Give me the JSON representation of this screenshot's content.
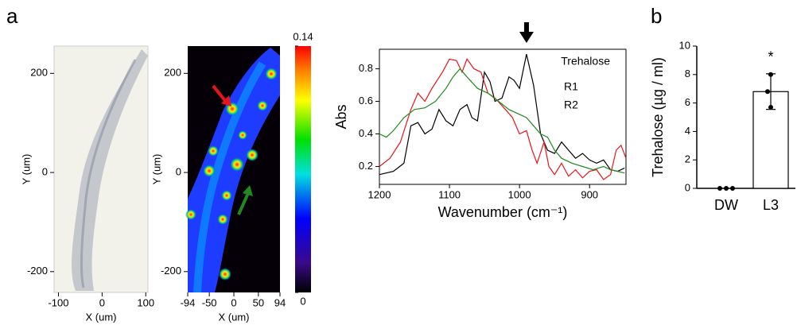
{
  "panel_labels": [
    "a",
    "b"
  ],
  "chart_data": [
    {
      "type": "image",
      "xlabel": "X (um)",
      "ylabel": "Y (um)",
      "xlim": [
        -110,
        105
      ],
      "ylim": [
        -242,
        255
      ],
      "xticks": [
        -100,
        0,
        100
      ],
      "yticks": [
        -200,
        0,
        200
      ]
    },
    {
      "type": "heatmap",
      "xlabel": "X (um)",
      "ylabel": "Y (um)",
      "xlim": [
        -94,
        94
      ],
      "ylim": [
        -242,
        255
      ],
      "xticks": [
        -94,
        -50,
        0,
        50,
        94
      ],
      "yticks": [
        -200,
        0,
        200
      ],
      "clim": [
        0,
        0.14
      ],
      "colorbar_ticks": [
        0,
        0.14
      ],
      "annotations": [
        {
          "text": "R1",
          "color": "#e8141b"
        },
        {
          "text": "R2",
          "color": "#1f8a1f"
        }
      ]
    },
    {
      "type": "line",
      "xlabel": "Wavenumber (cm⁻¹)",
      "ylabel": "Abs",
      "xlim": [
        1200,
        848
      ],
      "ylim": [
        0.09,
        0.92
      ],
      "xticks": [
        1200,
        1100,
        1000,
        900
      ],
      "yticks": [
        0.2,
        0.4,
        0.6,
        0.8
      ],
      "legend": "upper right",
      "arrow_x": 990,
      "series": [
        {
          "name": "Trehalose",
          "color": "#000000",
          "x": [
            1200,
            1180,
            1165,
            1155,
            1145,
            1135,
            1125,
            1115,
            1105,
            1095,
            1085,
            1075,
            1068,
            1060,
            1050,
            1042,
            1035,
            1025,
            1015,
            1008,
            1000,
            990,
            980,
            970,
            960,
            950,
            940,
            930,
            920,
            910,
            900,
            890,
            880,
            870,
            860,
            850
          ],
          "y": [
            0.15,
            0.17,
            0.22,
            0.45,
            0.47,
            0.4,
            0.43,
            0.55,
            0.48,
            0.45,
            0.55,
            0.58,
            0.5,
            0.48,
            0.78,
            0.72,
            0.6,
            0.62,
            0.75,
            0.73,
            0.68,
            0.89,
            0.7,
            0.4,
            0.3,
            0.28,
            0.35,
            0.3,
            0.25,
            0.28,
            0.24,
            0.22,
            0.24,
            0.18,
            0.17,
            0.19
          ]
        },
        {
          "name": "R1",
          "color": "#e8141b",
          "x": [
            1200,
            1185,
            1170,
            1155,
            1145,
            1135,
            1125,
            1110,
            1100,
            1090,
            1082,
            1075,
            1065,
            1055,
            1045,
            1035,
            1020,
            1010,
            1000,
            990,
            982,
            975,
            965,
            958,
            950,
            940,
            930,
            920,
            910,
            900,
            890,
            880,
            870,
            862,
            855,
            848
          ],
          "y": [
            0.2,
            0.25,
            0.35,
            0.55,
            0.65,
            0.6,
            0.68,
            0.78,
            0.86,
            0.85,
            0.78,
            0.86,
            0.8,
            0.78,
            0.65,
            0.62,
            0.55,
            0.5,
            0.4,
            0.42,
            0.3,
            0.22,
            0.35,
            0.2,
            0.15,
            0.22,
            0.14,
            0.18,
            0.13,
            0.17,
            0.18,
            0.12,
            0.15,
            0.3,
            0.33,
            0.25
          ]
        },
        {
          "name": "R2",
          "color": "#1f8a1f",
          "x": [
            1200,
            1190,
            1180,
            1165,
            1150,
            1135,
            1120,
            1105,
            1095,
            1085,
            1075,
            1060,
            1045,
            1030,
            1015,
            1000,
            990,
            980,
            970,
            960,
            950,
            940,
            925,
            910,
            895,
            880,
            870,
            860,
            850
          ],
          "y": [
            0.4,
            0.38,
            0.42,
            0.5,
            0.55,
            0.56,
            0.6,
            0.68,
            0.75,
            0.8,
            0.75,
            0.68,
            0.65,
            0.6,
            0.55,
            0.52,
            0.5,
            0.45,
            0.4,
            0.38,
            0.3,
            0.25,
            0.22,
            0.2,
            0.18,
            0.2,
            0.18,
            0.17,
            0.16
          ]
        }
      ]
    },
    {
      "type": "bar",
      "ylabel": "Trehalose (µg / ml)",
      "categories": [
        "DW",
        "L3"
      ],
      "values": [
        0,
        6.8
      ],
      "errors": [
        0,
        1.25
      ],
      "points": [
        [
          0,
          0,
          0
        ],
        [
          8.0,
          6.8,
          5.7
        ]
      ],
      "ylim": [
        0,
        10
      ],
      "yticks": [
        0,
        2,
        4,
        6,
        8,
        10
      ],
      "color": "#ffffff",
      "annotation": "*"
    }
  ]
}
